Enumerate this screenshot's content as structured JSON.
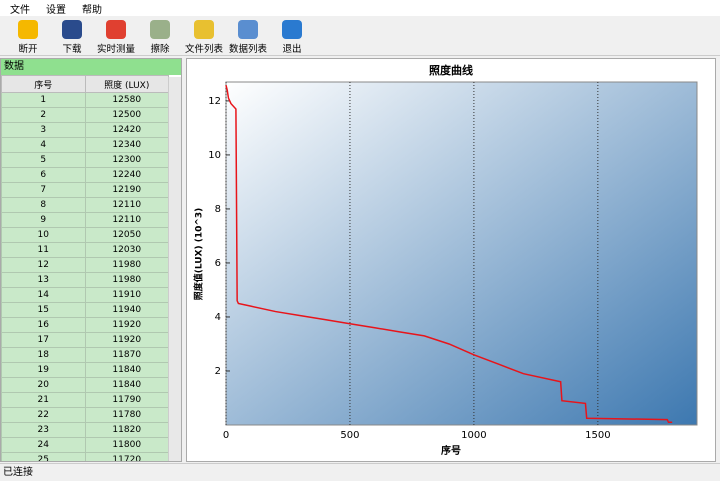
{
  "menu": [
    "文件",
    "设置",
    "帮助"
  ],
  "toolbar": [
    "断开",
    "下载",
    "实时测量",
    "擦除",
    "文件列表",
    "数据列表",
    "退出"
  ],
  "panel_title": "数据",
  "table": {
    "headers": [
      "序号",
      "照度 (LUX)"
    ],
    "rows": [
      [
        "1",
        "12580"
      ],
      [
        "2",
        "12500"
      ],
      [
        "3",
        "12420"
      ],
      [
        "4",
        "12340"
      ],
      [
        "5",
        "12300"
      ],
      [
        "6",
        "12240"
      ],
      [
        "7",
        "12190"
      ],
      [
        "8",
        "12110"
      ],
      [
        "9",
        "12110"
      ],
      [
        "10",
        "12050"
      ],
      [
        "11",
        "12030"
      ],
      [
        "12",
        "11980"
      ],
      [
        "13",
        "11980"
      ],
      [
        "14",
        "11910"
      ],
      [
        "15",
        "11940"
      ],
      [
        "16",
        "11920"
      ],
      [
        "17",
        "11920"
      ],
      [
        "18",
        "11870"
      ],
      [
        "19",
        "11840"
      ],
      [
        "20",
        "11840"
      ],
      [
        "21",
        "11790"
      ],
      [
        "22",
        "11780"
      ],
      [
        "23",
        "11820"
      ],
      [
        "24",
        "11800"
      ],
      [
        "25",
        "11720"
      ]
    ]
  },
  "status": "已连接",
  "chart_data": {
    "type": "line",
    "title": "照度曲线",
    "x_label": "序号",
    "y_label": "照度值(LUX) (10^3)",
    "x": [
      0,
      5,
      10,
      20,
      40,
      45,
      50,
      100,
      200,
      300,
      400,
      500,
      600,
      700,
      800,
      900,
      1000,
      1100,
      1200,
      1350,
      1355,
      1450,
      1455,
      1780,
      1785,
      1800
    ],
    "series": [
      {
        "name": "照度",
        "color": "#e8141a",
        "values": [
          12.58,
          12.4,
          12.1,
          11.9,
          11.7,
          4.6,
          4.5,
          4.4,
          4.2,
          4.05,
          3.9,
          3.75,
          3.6,
          3.45,
          3.3,
          3.0,
          2.6,
          2.25,
          1.9,
          1.6,
          0.9,
          0.8,
          0.25,
          0.2,
          0.1,
          0.1
        ]
      }
    ],
    "xlim": [
      0,
      1900
    ],
    "ylim": [
      0,
      12.7
    ],
    "xticks": [
      0,
      500,
      1000,
      1500
    ],
    "yticks": [
      2,
      4,
      6,
      8,
      10,
      12
    ],
    "grid": true
  }
}
